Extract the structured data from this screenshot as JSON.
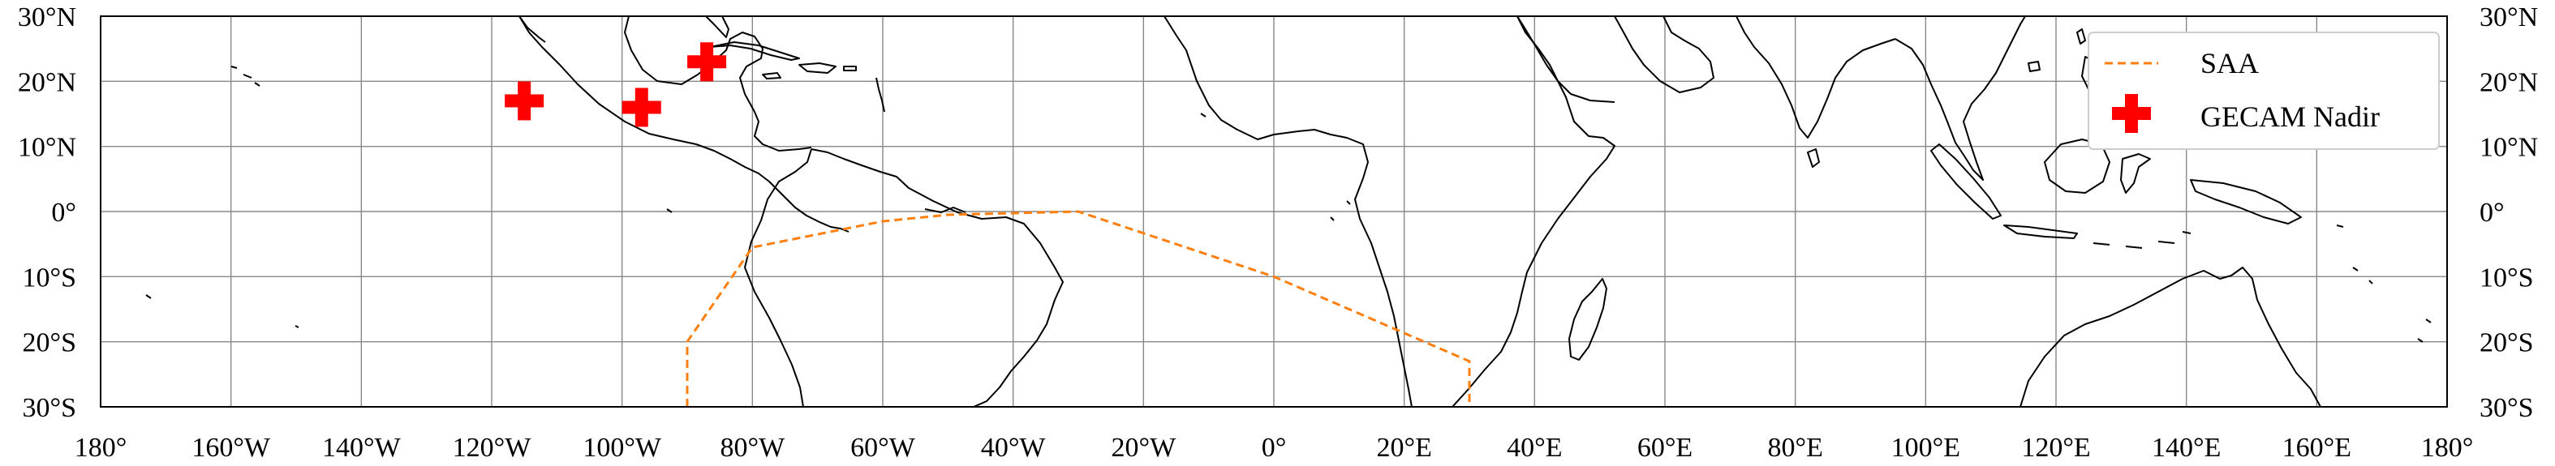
{
  "map": {
    "lon_range": [
      -180,
      180
    ],
    "lat_range": [
      -30,
      30
    ],
    "grid": true,
    "x_ticks": [
      {
        "lon": -180,
        "label": "180°"
      },
      {
        "lon": -160,
        "label": "160°W"
      },
      {
        "lon": -140,
        "label": "140°W"
      },
      {
        "lon": -120,
        "label": "120°W"
      },
      {
        "lon": -100,
        "label": "100°W"
      },
      {
        "lon": -80,
        "label": "80°W"
      },
      {
        "lon": -60,
        "label": "60°W"
      },
      {
        "lon": -40,
        "label": "40°W"
      },
      {
        "lon": -20,
        "label": "20°W"
      },
      {
        "lon": 0,
        "label": "0°"
      },
      {
        "lon": 20,
        "label": "20°E"
      },
      {
        "lon": 40,
        "label": "40°E"
      },
      {
        "lon": 60,
        "label": "60°E"
      },
      {
        "lon": 80,
        "label": "80°E"
      },
      {
        "lon": 100,
        "label": "100°E"
      },
      {
        "lon": 120,
        "label": "120°E"
      },
      {
        "lon": 140,
        "label": "140°E"
      },
      {
        "lon": 160,
        "label": "160°E"
      },
      {
        "lon": 180,
        "label": "180°"
      }
    ],
    "y_ticks": [
      {
        "lat": 30,
        "label": "30°N"
      },
      {
        "lat": 20,
        "label": "20°N"
      },
      {
        "lat": 10,
        "label": "10°N"
      },
      {
        "lat": 0,
        "label": "0°"
      },
      {
        "lat": -10,
        "label": "10°S"
      },
      {
        "lat": -20,
        "label": "20°S"
      },
      {
        "lat": -30,
        "label": "30°S"
      }
    ],
    "legend": {
      "position": "top-right",
      "items": [
        {
          "label": "SAA",
          "style": "dashed-line",
          "color": "#ff7f0e"
        },
        {
          "label": "GECAM Nadir",
          "style": "plus-marker",
          "color": "#ff0000"
        }
      ]
    },
    "saa_polygon": [
      [
        -90,
        -30
      ],
      [
        -90,
        -20
      ],
      [
        -80,
        -5.5
      ],
      [
        -60,
        -1.5
      ],
      [
        -50,
        -0.5
      ],
      [
        -30,
        0
      ],
      [
        0,
        -10
      ],
      [
        30,
        -23
      ],
      [
        30,
        -30
      ]
    ],
    "gecam_nadir_points": [
      {
        "lon": -115,
        "lat": 17
      },
      {
        "lon": -97,
        "lat": 16
      },
      {
        "lon": -87,
        "lat": 23
      }
    ]
  }
}
